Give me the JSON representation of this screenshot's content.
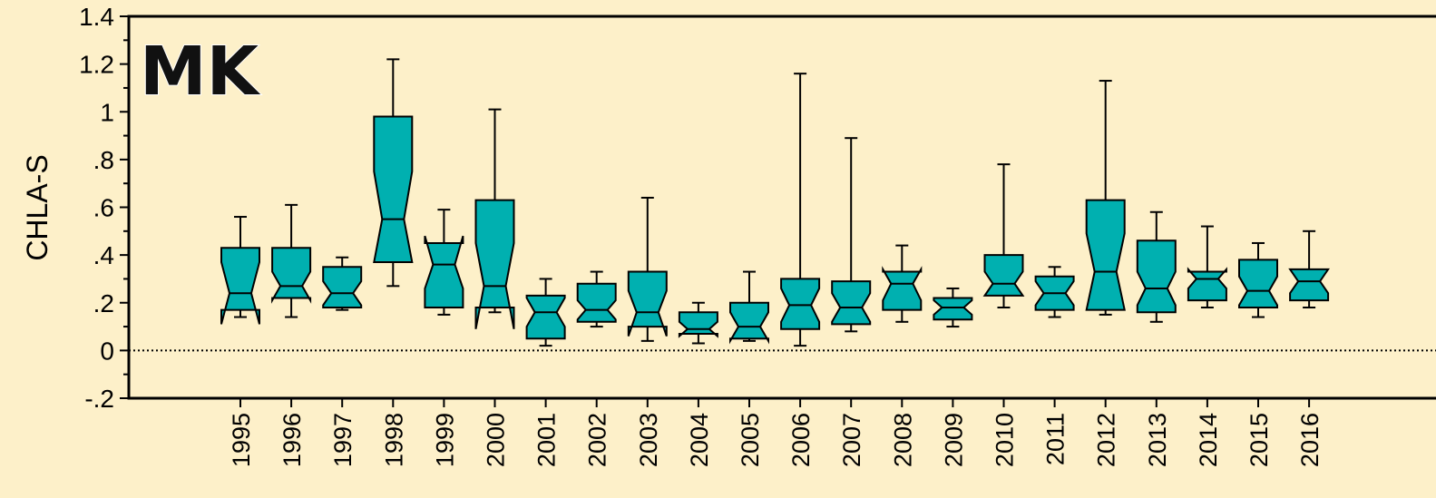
{
  "chart_data": {
    "type": "boxplot",
    "title": "",
    "panel_label": "MK",
    "xlabel": "",
    "ylabel": "CHLA-S",
    "ylim": [
      -0.2,
      1.4
    ],
    "y_ticks": [
      {
        "value": 1.4,
        "label": "1.4"
      },
      {
        "value": 1.2,
        "label": "1.2"
      },
      {
        "value": 1.0,
        "label": "1"
      },
      {
        "value": 0.8,
        "label": ".8"
      },
      {
        "value": 0.6,
        "label": ".6"
      },
      {
        "value": 0.4,
        "label": ".4"
      },
      {
        "value": 0.2,
        "label": ".2"
      },
      {
        "value": 0.0,
        "label": "0"
      },
      {
        "value": -0.2,
        "label": "-.2"
      }
    ],
    "reference_line": {
      "value": 0,
      "style": "dotted"
    },
    "box_color": "#00b0b0",
    "outline_color": "#000000",
    "categories": [
      "1995",
      "1996",
      "1997",
      "1998",
      "1999",
      "2000",
      "2001",
      "2002",
      "2003",
      "2004",
      "2005",
      "2006",
      "2007",
      "2008",
      "2009",
      "2010",
      "2011",
      "2012",
      "2013",
      "2014",
      "2015",
      "2016"
    ],
    "boxes": [
      {
        "year": "1995",
        "whisker_low": 0.14,
        "q1": 0.17,
        "median": 0.24,
        "q3": 0.43,
        "whisker_high": 0.56,
        "notch_low": 0.11,
        "notch_high": 0.37
      },
      {
        "year": "1996",
        "whisker_low": 0.14,
        "q1": 0.22,
        "median": 0.27,
        "q3": 0.43,
        "whisker_high": 0.61,
        "notch_low": 0.21,
        "notch_high": 0.33
      },
      {
        "year": "1997",
        "whisker_low": 0.17,
        "q1": 0.18,
        "median": 0.24,
        "q3": 0.35,
        "whisker_high": 0.39,
        "notch_low": 0.19,
        "notch_high": 0.29
      },
      {
        "year": "1998",
        "whisker_low": 0.27,
        "q1": 0.37,
        "median": 0.55,
        "q3": 0.98,
        "whisker_high": 1.22,
        "notch_low": 0.37,
        "notch_high": 0.75
      },
      {
        "year": "1999",
        "whisker_low": 0.15,
        "q1": 0.18,
        "median": 0.36,
        "q3": 0.45,
        "whisker_high": 0.59,
        "notch_low": 0.26,
        "notch_high": 0.48
      },
      {
        "year": "2000",
        "whisker_low": 0.16,
        "q1": 0.18,
        "median": 0.27,
        "q3": 0.63,
        "whisker_high": 1.01,
        "notch_low": 0.09,
        "notch_high": 0.45
      },
      {
        "year": "2001",
        "whisker_low": 0.02,
        "q1": 0.05,
        "median": 0.16,
        "q3": 0.23,
        "whisker_high": 0.3,
        "notch_low": 0.1,
        "notch_high": 0.22
      },
      {
        "year": "2002",
        "whisker_low": 0.1,
        "q1": 0.12,
        "median": 0.17,
        "q3": 0.28,
        "whisker_high": 0.33,
        "notch_low": 0.13,
        "notch_high": 0.21
      },
      {
        "year": "2003",
        "whisker_low": 0.04,
        "q1": 0.1,
        "median": 0.16,
        "q3": 0.33,
        "whisker_high": 0.64,
        "notch_low": 0.06,
        "notch_high": 0.25
      },
      {
        "year": "2004",
        "whisker_low": 0.03,
        "q1": 0.07,
        "median": 0.09,
        "q3": 0.16,
        "whisker_high": 0.2,
        "notch_low": 0.06,
        "notch_high": 0.12
      },
      {
        "year": "2005",
        "whisker_low": 0.04,
        "q1": 0.05,
        "median": 0.1,
        "q3": 0.2,
        "whisker_high": 0.33,
        "notch_low": 0.04,
        "notch_high": 0.16
      },
      {
        "year": "2006",
        "whisker_low": 0.02,
        "q1": 0.09,
        "median": 0.19,
        "q3": 0.3,
        "whisker_high": 1.16,
        "notch_low": 0.12,
        "notch_high": 0.26
      },
      {
        "year": "2007",
        "whisker_low": 0.08,
        "q1": 0.11,
        "median": 0.18,
        "q3": 0.29,
        "whisker_high": 0.89,
        "notch_low": 0.12,
        "notch_high": 0.24
      },
      {
        "year": "2008",
        "whisker_low": 0.12,
        "q1": 0.17,
        "median": 0.28,
        "q3": 0.33,
        "whisker_high": 0.44,
        "notch_low": 0.21,
        "notch_high": 0.34
      },
      {
        "year": "2009",
        "whisker_low": 0.1,
        "q1": 0.13,
        "median": 0.18,
        "q3": 0.22,
        "whisker_high": 0.26,
        "notch_low": 0.15,
        "notch_high": 0.21
      },
      {
        "year": "2010",
        "whisker_low": 0.18,
        "q1": 0.23,
        "median": 0.28,
        "q3": 0.4,
        "whisker_high": 0.78,
        "notch_low": 0.23,
        "notch_high": 0.33
      },
      {
        "year": "2011",
        "whisker_low": 0.14,
        "q1": 0.17,
        "median": 0.24,
        "q3": 0.31,
        "whisker_high": 0.35,
        "notch_low": 0.19,
        "notch_high": 0.29
      },
      {
        "year": "2012",
        "whisker_low": 0.15,
        "q1": 0.17,
        "median": 0.33,
        "q3": 0.63,
        "whisker_high": 1.13,
        "notch_low": 0.17,
        "notch_high": 0.49
      },
      {
        "year": "2013",
        "whisker_low": 0.12,
        "q1": 0.16,
        "median": 0.26,
        "q3": 0.46,
        "whisker_high": 0.58,
        "notch_low": 0.19,
        "notch_high": 0.33
      },
      {
        "year": "2014",
        "whisker_low": 0.18,
        "q1": 0.21,
        "median": 0.3,
        "q3": 0.33,
        "whisker_high": 0.52,
        "notch_low": 0.26,
        "notch_high": 0.34
      },
      {
        "year": "2015",
        "whisker_low": 0.14,
        "q1": 0.18,
        "median": 0.25,
        "q3": 0.38,
        "whisker_high": 0.45,
        "notch_low": 0.19,
        "notch_high": 0.31
      },
      {
        "year": "2016",
        "whisker_low": 0.18,
        "q1": 0.21,
        "median": 0.29,
        "q3": 0.34,
        "whisker_high": 0.5,
        "notch_low": 0.24,
        "notch_high": 0.34
      }
    ]
  }
}
